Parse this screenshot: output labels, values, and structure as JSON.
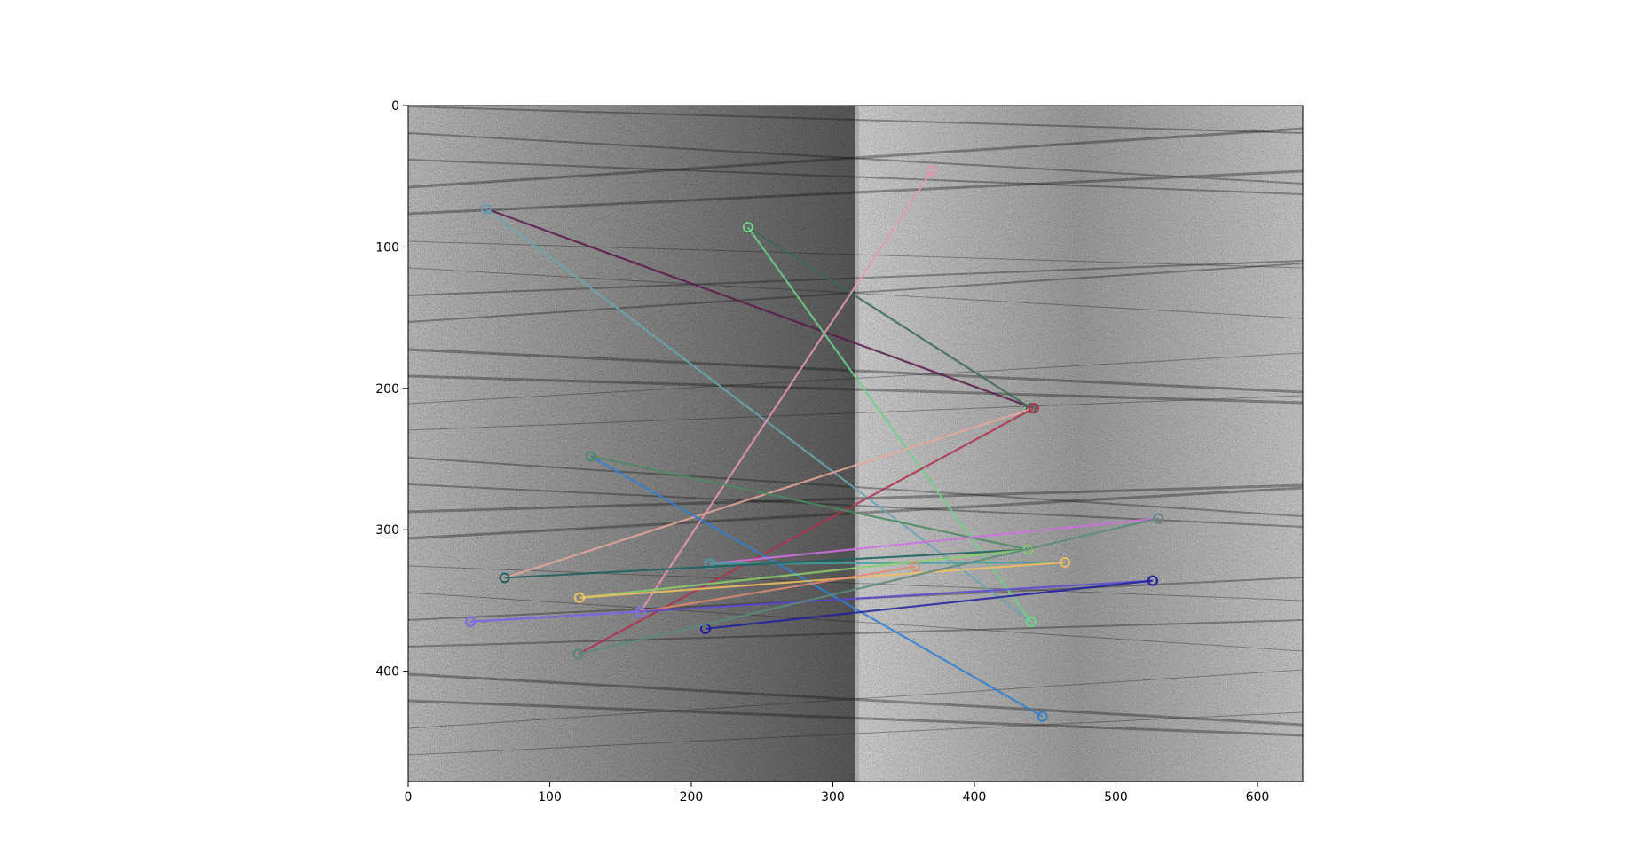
{
  "chart_data": {
    "type": "scatter",
    "title": "",
    "xlabel": "",
    "ylabel": "",
    "xlim": [
      0,
      632
    ],
    "ylim": [
      478,
      0
    ],
    "x_ticks": [
      0,
      100,
      200,
      300,
      400,
      500,
      600
    ],
    "y_ticks": [
      0,
      100,
      200,
      300,
      400
    ],
    "background": "two side-by-side grayscale sonar images (left 0-316, right 316-632)",
    "grid": false,
    "legend": "none",
    "series": [
      {
        "color": "#5b1a4a",
        "x": [
          55,
          442
        ],
        "y": [
          73,
          214
        ]
      },
      {
        "color": "#6aa6b0",
        "x": [
          55,
          440
        ],
        "y": [
          73,
          365
        ]
      },
      {
        "color": "#3a6a55",
        "x": [
          240,
          440
        ],
        "y": [
          86,
          214
        ]
      },
      {
        "color": "#6fd08a",
        "x": [
          240,
          440
        ],
        "y": [
          86,
          365
        ]
      },
      {
        "color": "#e59ab0",
        "x": [
          370,
          164
        ],
        "y": [
          46,
          358
        ]
      },
      {
        "color": "#e6a89a",
        "x": [
          442,
          68
        ],
        "y": [
          214,
          334
        ]
      },
      {
        "color": "#b03050",
        "x": [
          442,
          120
        ],
        "y": [
          214,
          388
        ]
      },
      {
        "color": "#2f7fd0",
        "x": [
          129,
          448
        ],
        "y": [
          248,
          432
        ]
      },
      {
        "color": "#4a8a60",
        "x": [
          129,
          438
        ],
        "y": [
          248,
          314
        ]
      },
      {
        "color": "#d070e0",
        "x": [
          213,
          530
        ],
        "y": [
          324,
          292
        ]
      },
      {
        "color": "#40a0a0",
        "x": [
          213,
          464
        ],
        "y": [
          324,
          323
        ]
      },
      {
        "color": "#1a6060",
        "x": [
          68,
          438
        ],
        "y": [
          334,
          314
        ]
      },
      {
        "color": "#8ccf6a",
        "x": [
          121,
          438
        ],
        "y": [
          348,
          314
        ]
      },
      {
        "color": "#f0c060",
        "x": [
          121,
          464
        ],
        "y": [
          348,
          323
        ]
      },
      {
        "color": "#e08a70",
        "x": [
          164,
          358
        ],
        "y": [
          358,
          326
        ]
      },
      {
        "color": "#5a4ad0",
        "x": [
          44,
          526
        ],
        "y": [
          365,
          336
        ]
      },
      {
        "color": "#8070e0",
        "x": [
          44,
          164
        ],
        "y": [
          365,
          358
        ]
      },
      {
        "color": "#2020a0",
        "x": [
          210,
          526
        ],
        "y": [
          370,
          336
        ]
      },
      {
        "color": "#5a8a7a",
        "x": [
          120,
          530
        ],
        "y": [
          388,
          292
        ]
      }
    ]
  }
}
